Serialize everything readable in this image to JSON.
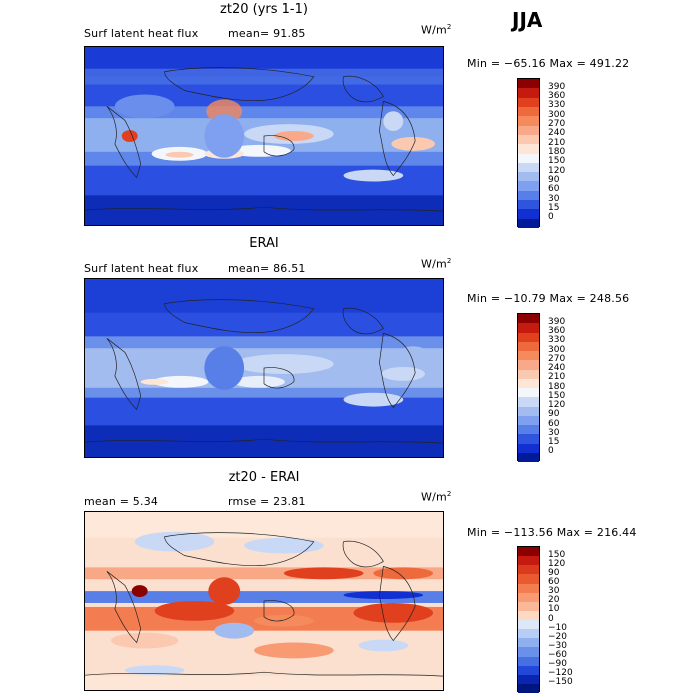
{
  "season": "JJA",
  "panels": [
    {
      "title": "zt20 (yrs 1-1)",
      "left": "Surf latent heat flux",
      "mid": "mean=  91.85",
      "units": "W/m",
      "sup": "2",
      "minmax": "Min = −65.16 Max = 491.22"
    },
    {
      "title": "ERAI",
      "left": "Surf latent heat flux",
      "mid": "mean=  86.51",
      "units": "W/m",
      "sup": "2",
      "minmax": "Min = −10.79 Max = 248.56"
    },
    {
      "title": "zt20 - ERAI",
      "left": "mean =   5.34",
      "mid": "rmse =  23.81",
      "units": "W/m",
      "sup": "2",
      "minmax": "Min = −113.56 Max = 216.44"
    }
  ],
  "colorbar_abs": {
    "labels": [
      "390",
      "360",
      "330",
      "300",
      "270",
      "240",
      "210",
      "180",
      "150",
      "120",
      "90",
      "60",
      "30",
      "15",
      "0"
    ],
    "colors": [
      "#8b0000",
      "#c41a10",
      "#e0401e",
      "#ee6a3c",
      "#f58a5c",
      "#f9a98a",
      "#fbc9b0",
      "#fde6d6",
      "#f3f6fb",
      "#c9d9f5",
      "#a3bcef",
      "#7f9ff0",
      "#587ee8",
      "#2f55df",
      "#1230d2",
      "#001a9a"
    ]
  },
  "colorbar_diff": {
    "labels": [
      "150",
      "120",
      "90",
      "60",
      "30",
      "20",
      "10",
      "0",
      "−10",
      "−20",
      "−30",
      "−60",
      "−90",
      "−120",
      "−150"
    ],
    "colors": [
      "#8b0000",
      "#c41a10",
      "#dc3a1c",
      "#ea5a30",
      "#f37c50",
      "#f89a72",
      "#fbb898",
      "#fdd8c2",
      "#dce8f8",
      "#b7cdf3",
      "#8eb0ee",
      "#6a90ea",
      "#4670e2",
      "#2148d8",
      "#0a25b0",
      "#00167f"
    ]
  },
  "colors": {
    "ocean_deep": "#1c3fd6",
    "ocean_mid": "#3e66e6",
    "light": "#a8c2f2",
    "pale": "#f4e2d6",
    "warm": "#f08a5c",
    "hot": "#d8381c",
    "coast": "#222222",
    "diff_bg": "#fbe0d0"
  }
}
